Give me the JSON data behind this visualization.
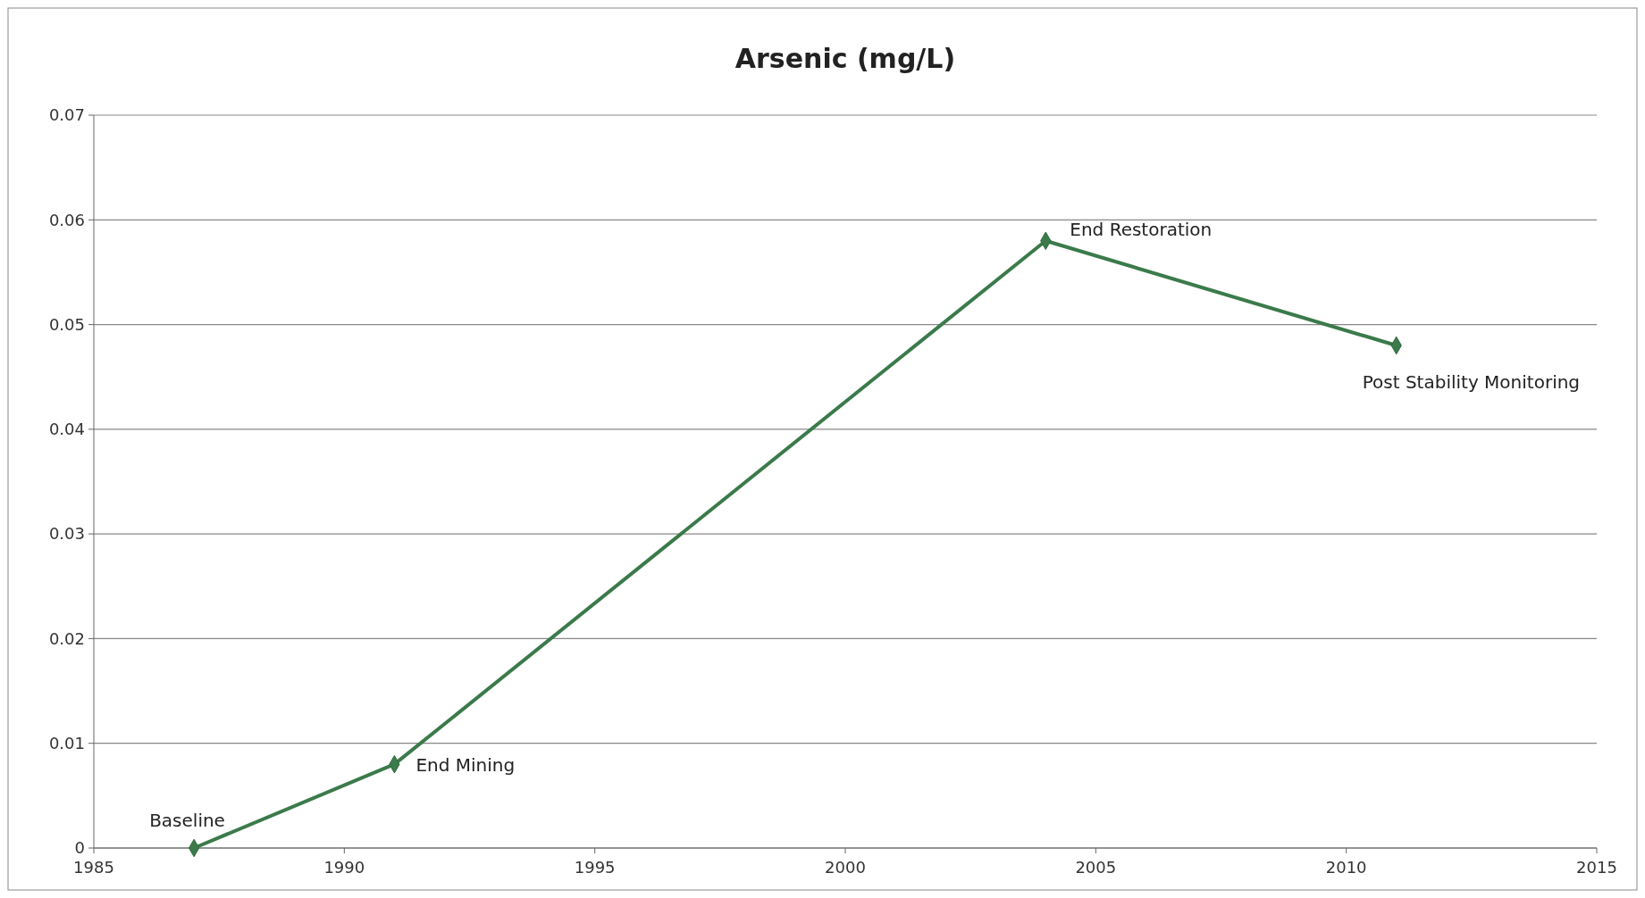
{
  "chart_data": {
    "type": "line",
    "title": "Arsenic (mg/L)",
    "x": [
      1987,
      1991,
      2004,
      2011
    ],
    "series": [
      {
        "color": "#3b7a4b",
        "values": [
          0,
          0.008,
          0.058,
          0.048
        ]
      }
    ],
    "xlim": [
      1985,
      2015
    ],
    "xticks": [
      1985,
      1990,
      1995,
      2000,
      2005,
      2010,
      2015
    ],
    "ylim": [
      0,
      0.07
    ],
    "yticks": [
      0,
      0.01,
      0.02,
      0.03,
      0.04,
      0.05,
      0.06,
      0.07
    ],
    "grid": "y",
    "marker": "diamond",
    "line_style": "solid",
    "annotations": [
      {
        "text": "Baseline",
        "x": 1987,
        "y": 0
      },
      {
        "text": "End Mining",
        "x": 1991,
        "y": 0.008
      },
      {
        "text": "End Restoration",
        "x": 2004,
        "y": 0.058
      },
      {
        "text": "Post Stability Monitoring",
        "x": 2011,
        "y": 0.048
      }
    ]
  }
}
